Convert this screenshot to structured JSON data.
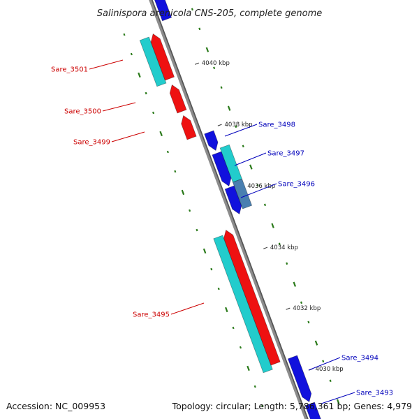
{
  "title": "Salinispora arenicola CNS-205, complete genome",
  "accession": "Accession: NC_009953",
  "summary": "Topology: circular; Length: 5,786,361 bp; Genes: 4,979",
  "colors": {
    "backbone": "#8c8c8c",
    "forward_cds": "#ee1111",
    "reverse_cds": "#1111dd",
    "forward_label": "#cc0000",
    "reverse_label": "#0000bb",
    "forward_cog": "#22cccc",
    "reverse_cog": "#22cccc",
    "reverse_cog_alt": "#4a7fb0",
    "gc_ticks": "#2a7a1a"
  },
  "scale": {
    "unit": "kbp",
    "ticks": [
      {
        "label": "4040 kbp"
      },
      {
        "label": "4038 kbp"
      },
      {
        "label": "4036 kbp"
      },
      {
        "label": "4034 kbp"
      },
      {
        "label": "4032 kbp"
      },
      {
        "label": "4030 kbp"
      }
    ]
  },
  "genes": {
    "Sare_3501": {
      "label": "Sare_3501",
      "strand": "forward",
      "cog": true
    },
    "Sare_3500": {
      "label": "Sare_3500",
      "strand": "forward",
      "cog": false
    },
    "Sare_3499": {
      "label": "Sare_3499",
      "strand": "forward",
      "cog": false
    },
    "Sare_3498": {
      "label": "Sare_3498",
      "strand": "reverse",
      "cog": false
    },
    "Sare_3497": {
      "label": "Sare_3497",
      "strand": "reverse",
      "cog": true
    },
    "Sare_3496": {
      "label": "Sare_3496",
      "strand": "reverse",
      "cog": true
    },
    "Sare_3495": {
      "label": "Sare_3495",
      "strand": "forward",
      "cog": true
    },
    "Sare_3494": {
      "label": "Sare_3494",
      "strand": "reverse",
      "cog": false
    },
    "Sare_3493": {
      "label": "Sare_3493",
      "strand": "reverse",
      "cog": false
    }
  }
}
